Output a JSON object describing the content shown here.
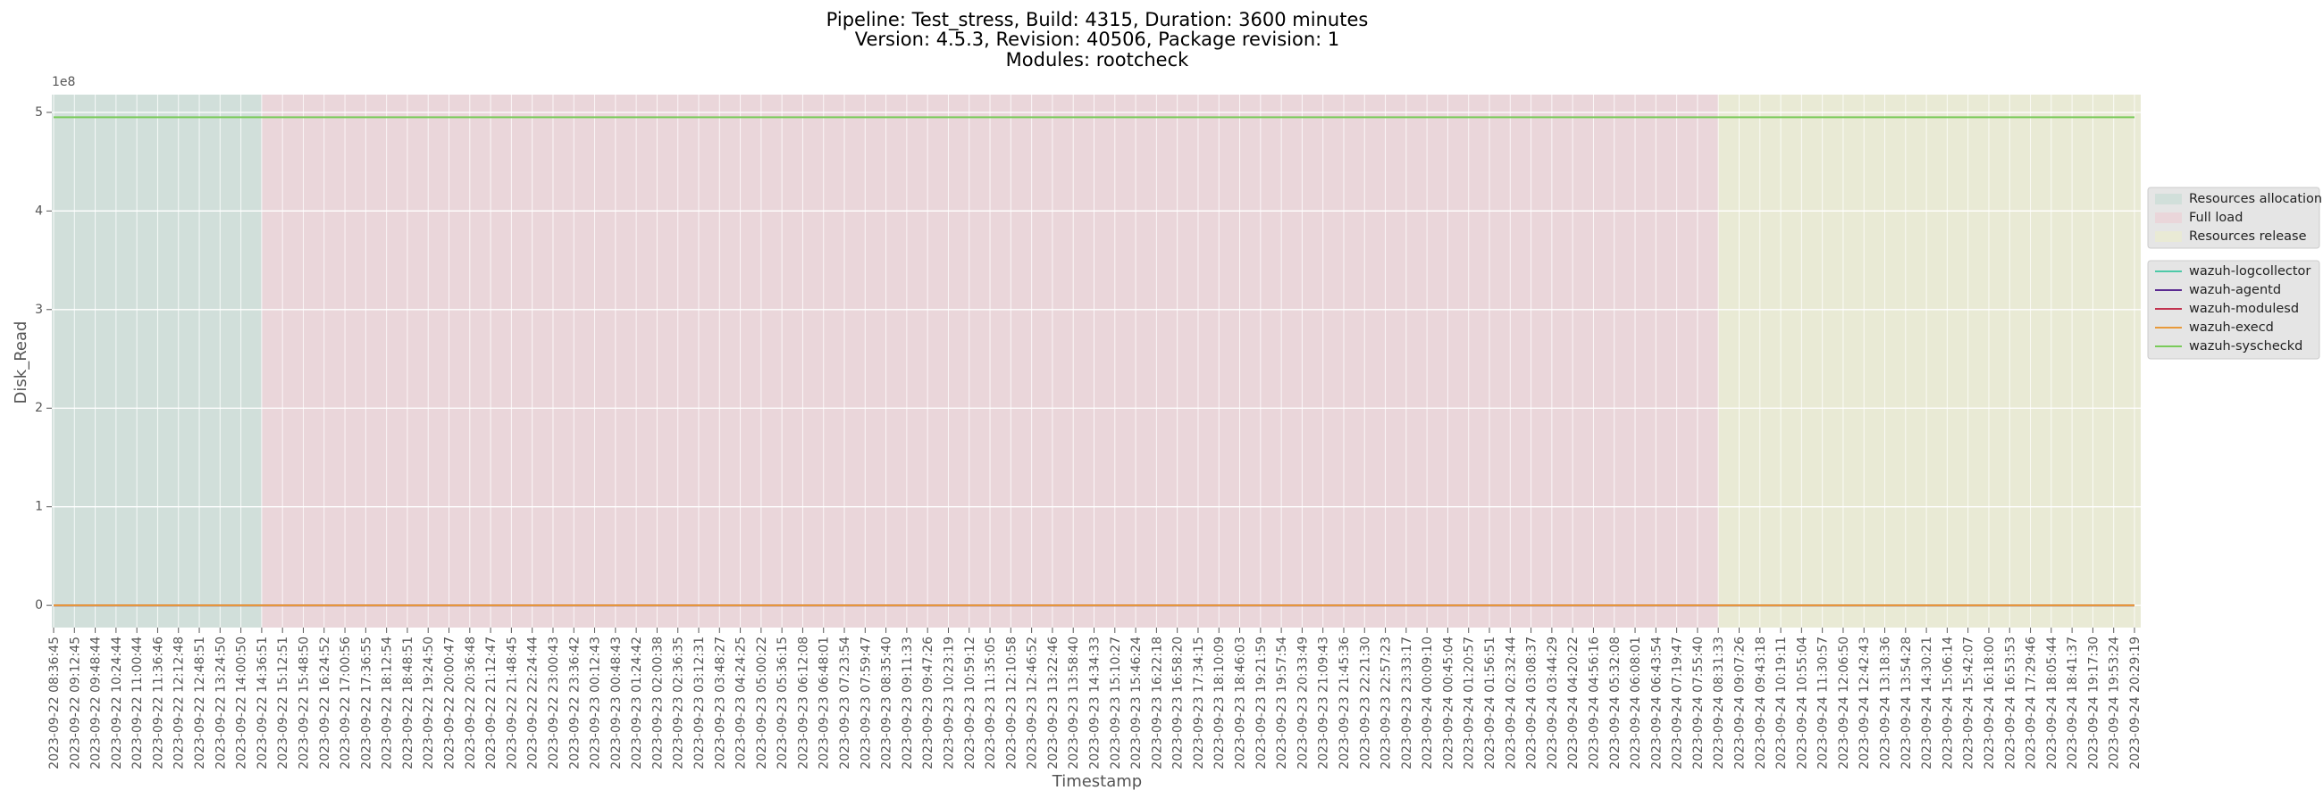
{
  "chart_data": {
    "type": "line",
    "title": [
      "Pipeline: Test_stress, Build: 4315, Duration: 3600 minutes",
      "Version: 4.5.3, Revision: 40506, Package revision: 1",
      "Modules: rootcheck"
    ],
    "x_label": "Timestamp",
    "y_label": "Disk_Read",
    "y_offset_label": "1e8",
    "x": [
      "2023-09-22 08:36:45",
      "2023-09-22 09:12:45",
      "2023-09-22 09:48:44",
      "2023-09-22 10:24:44",
      "2023-09-22 11:00:44",
      "2023-09-22 11:36:46",
      "2023-09-22 12:12:48",
      "2023-09-22 12:48:51",
      "2023-09-22 13:24:50",
      "2023-09-22 14:00:50",
      "2023-09-22 14:36:51",
      "2023-09-22 15:12:51",
      "2023-09-22 15:48:50",
      "2023-09-22 16:24:52",
      "2023-09-22 17:00:56",
      "2023-09-22 17:36:55",
      "2023-09-22 18:12:54",
      "2023-09-22 18:48:51",
      "2023-09-22 19:24:50",
      "2023-09-22 20:00:47",
      "2023-09-22 20:36:48",
      "2023-09-22 21:12:47",
      "2023-09-22 21:48:45",
      "2023-09-22 22:24:44",
      "2023-09-22 23:00:43",
      "2023-09-22 23:36:42",
      "2023-09-23 00:12:43",
      "2023-09-23 00:48:43",
      "2023-09-23 01:24:42",
      "2023-09-23 02:00:38",
      "2023-09-23 02:36:35",
      "2023-09-23 03:12:31",
      "2023-09-23 03:48:27",
      "2023-09-23 04:24:25",
      "2023-09-23 05:00:22",
      "2023-09-23 05:36:15",
      "2023-09-23 06:12:08",
      "2023-09-23 06:48:01",
      "2023-09-23 07:23:54",
      "2023-09-23 07:59:47",
      "2023-09-23 08:35:40",
      "2023-09-23 09:11:33",
      "2023-09-23 09:47:26",
      "2023-09-23 10:23:19",
      "2023-09-23 10:59:12",
      "2023-09-23 11:35:05",
      "2023-09-23 12:10:58",
      "2023-09-23 12:46:52",
      "2023-09-23 13:22:46",
      "2023-09-23 13:58:40",
      "2023-09-23 14:34:33",
      "2023-09-23 15:10:27",
      "2023-09-23 15:46:24",
      "2023-09-23 16:22:18",
      "2023-09-23 16:58:20",
      "2023-09-23 17:34:15",
      "2023-09-23 18:10:09",
      "2023-09-23 18:46:03",
      "2023-09-23 19:21:59",
      "2023-09-23 19:57:54",
      "2023-09-23 20:33:49",
      "2023-09-23 21:09:43",
      "2023-09-23 21:45:36",
      "2023-09-23 22:21:30",
      "2023-09-23 22:57:23",
      "2023-09-23 23:33:17",
      "2023-09-24 00:09:10",
      "2023-09-24 00:45:04",
      "2023-09-24 01:20:57",
      "2023-09-24 01:56:51",
      "2023-09-24 02:32:44",
      "2023-09-24 03:08:37",
      "2023-09-24 03:44:29",
      "2023-09-24 04:20:22",
      "2023-09-24 04:56:16",
      "2023-09-24 05:32:08",
      "2023-09-24 06:08:01",
      "2023-09-24 06:43:54",
      "2023-09-24 07:19:47",
      "2023-09-24 07:55:40",
      "2023-09-24 08:31:33",
      "2023-09-24 09:07:26",
      "2023-09-24 09:43:18",
      "2023-09-24 10:19:11",
      "2023-09-24 10:55:04",
      "2023-09-24 11:30:57",
      "2023-09-24 12:06:50",
      "2023-09-24 12:42:43",
      "2023-09-24 13:18:36",
      "2023-09-24 13:54:28",
      "2023-09-24 14:30:21",
      "2023-09-24 15:06:14",
      "2023-09-24 15:42:07",
      "2023-09-24 16:18:00",
      "2023-09-24 16:53:53",
      "2023-09-24 17:29:46",
      "2023-09-24 18:05:44",
      "2023-09-24 18:41:37",
      "2023-09-24 19:17:30",
      "2023-09-24 19:53:24",
      "2023-09-24 20:29:19"
    ],
    "series": [
      {
        "name": "wazuh-logcollector",
        "color": "#4ec9a8",
        "values": [
          0,
          0,
          0,
          0,
          0,
          0,
          0,
          0,
          0,
          0,
          0,
          0,
          0,
          0,
          0,
          0,
          0,
          0,
          0,
          0,
          0,
          0,
          0,
          0,
          0,
          0,
          0,
          0,
          0,
          0,
          0,
          0,
          0,
          0,
          0,
          0,
          0,
          0,
          0,
          0,
          0,
          0,
          0,
          0,
          0,
          0,
          0,
          0,
          0,
          0,
          0,
          0,
          0,
          0,
          0,
          0,
          0,
          0,
          0,
          0,
          0,
          0,
          0,
          0,
          0,
          0,
          0,
          0,
          0,
          0,
          0,
          0,
          0,
          0,
          0,
          0,
          0,
          0,
          0,
          0,
          0,
          0,
          0,
          0,
          0,
          0,
          0,
          0,
          0,
          0,
          0,
          0,
          0,
          0,
          0,
          0,
          0,
          0,
          0,
          0,
          0
        ]
      },
      {
        "name": "wazuh-agentd",
        "color": "#5b2a91",
        "values": [
          0,
          0,
          0,
          0,
          0,
          0,
          0,
          0,
          0,
          0,
          0,
          0,
          0,
          0,
          0,
          0,
          0,
          0,
          0,
          0,
          0,
          0,
          0,
          0,
          0,
          0,
          0,
          0,
          0,
          0,
          0,
          0,
          0,
          0,
          0,
          0,
          0,
          0,
          0,
          0,
          0,
          0,
          0,
          0,
          0,
          0,
          0,
          0,
          0,
          0,
          0,
          0,
          0,
          0,
          0,
          0,
          0,
          0,
          0,
          0,
          0,
          0,
          0,
          0,
          0,
          0,
          0,
          0,
          0,
          0,
          0,
          0,
          0,
          0,
          0,
          0,
          0,
          0,
          0,
          0,
          0,
          0,
          0,
          0,
          0,
          0,
          0,
          0,
          0,
          0,
          0,
          0,
          0,
          0,
          0,
          0,
          0,
          0,
          0,
          0,
          0
        ]
      },
      {
        "name": "wazuh-modulesd",
        "color": "#c2324f",
        "values": [
          0,
          0,
          0,
          0,
          0,
          0,
          0,
          0,
          0,
          0,
          0,
          0,
          0,
          0,
          0,
          0,
          0,
          0,
          0,
          0,
          0,
          0,
          0,
          0,
          0,
          0,
          0,
          0,
          0,
          0,
          0,
          0,
          0,
          0,
          0,
          0,
          0,
          0,
          0,
          0,
          0,
          0,
          0,
          0,
          0,
          0,
          0,
          0,
          0,
          0,
          0,
          0,
          0,
          0,
          0,
          0,
          0,
          0,
          0,
          0,
          0,
          0,
          0,
          0,
          0,
          0,
          0,
          0,
          0,
          0,
          0,
          0,
          0,
          0,
          0,
          0,
          0,
          0,
          0,
          0,
          0,
          0,
          0,
          0,
          0,
          0,
          0,
          0,
          0,
          0,
          0,
          0,
          0,
          0,
          0,
          0,
          0,
          0,
          0,
          0,
          0
        ]
      },
      {
        "name": "wazuh-execd",
        "color": "#e89a3a",
        "values": [
          0,
          0,
          0,
          0,
          0,
          0,
          0,
          0,
          0,
          0,
          0,
          0,
          0,
          0,
          0,
          0,
          0,
          0,
          0,
          0,
          0,
          0,
          0,
          0,
          0,
          0,
          0,
          0,
          0,
          0,
          0,
          0,
          0,
          0,
          0,
          0,
          0,
          0,
          0,
          0,
          0,
          0,
          0,
          0,
          0,
          0,
          0,
          0,
          0,
          0,
          0,
          0,
          0,
          0,
          0,
          0,
          0,
          0,
          0,
          0,
          0,
          0,
          0,
          0,
          0,
          0,
          0,
          0,
          0,
          0,
          0,
          0,
          0,
          0,
          0,
          0,
          0,
          0,
          0,
          0,
          0,
          0,
          0,
          0,
          0,
          0,
          0,
          0,
          0,
          0,
          0,
          0,
          0,
          0,
          0,
          0,
          0,
          0,
          0,
          0,
          0
        ]
      },
      {
        "name": "wazuh-syscheckd",
        "color": "#7acb5a",
        "values": [
          495000000,
          495000000,
          495000000,
          495000000,
          495000000,
          495000000,
          495000000,
          495000000,
          495000000,
          495000000,
          495000000,
          495000000,
          495000000,
          495000000,
          495000000,
          495000000,
          495000000,
          495000000,
          495000000,
          495000000,
          495000000,
          495000000,
          495000000,
          495000000,
          495000000,
          495000000,
          495000000,
          495000000,
          495000000,
          495000000,
          495000000,
          495000000,
          495000000,
          495000000,
          495000000,
          495000000,
          495000000,
          495000000,
          495000000,
          495000000,
          495000000,
          495000000,
          495000000,
          495000000,
          495000000,
          495000000,
          495000000,
          495000000,
          495000000,
          495000000,
          495000000,
          495000000,
          495000000,
          495000000,
          495000000,
          495000000,
          495000000,
          495000000,
          495000000,
          495000000,
          495000000,
          495000000,
          495000000,
          495000000,
          495000000,
          495000000,
          495000000,
          495000000,
          495000000,
          495000000,
          495000000,
          495000000,
          495000000,
          495000000,
          495000000,
          495000000,
          495000000,
          495000000,
          495000000,
          495000000,
          495000000,
          495000000,
          495000000,
          495000000,
          495000000,
          495000000,
          495000000,
          495000000,
          495000000,
          495000000,
          495000000,
          495000000,
          495000000,
          495000000,
          495000000,
          495000000,
          495000000,
          495000000,
          495000000,
          495000000,
          495000000
        ]
      }
    ],
    "spans": [
      {
        "name": "Resources allocation",
        "color": "#b9d8cc",
        "start": "2023-09-22 08:36:45",
        "end": "2023-09-22 14:36:51"
      },
      {
        "name": "Full load",
        "color": "#f0c3cc",
        "start": "2023-09-22 14:36:51",
        "end": "2023-09-24 08:31:33"
      },
      {
        "name": "Resources release",
        "color": "#eef0c0",
        "start": "2023-09-24 08:31:33",
        "end": "2023-09-24 20:29:19"
      }
    ],
    "ylim": [
      -22500000,
      518000000
    ],
    "yticks": [
      {
        "value": 0,
        "label": "0"
      },
      {
        "value": 100000000,
        "label": "1"
      },
      {
        "value": 200000000,
        "label": "2"
      },
      {
        "value": 300000000,
        "label": "3"
      },
      {
        "value": 400000000,
        "label": "4"
      },
      {
        "value": 500000000,
        "label": "5"
      }
    ],
    "grid": true
  }
}
